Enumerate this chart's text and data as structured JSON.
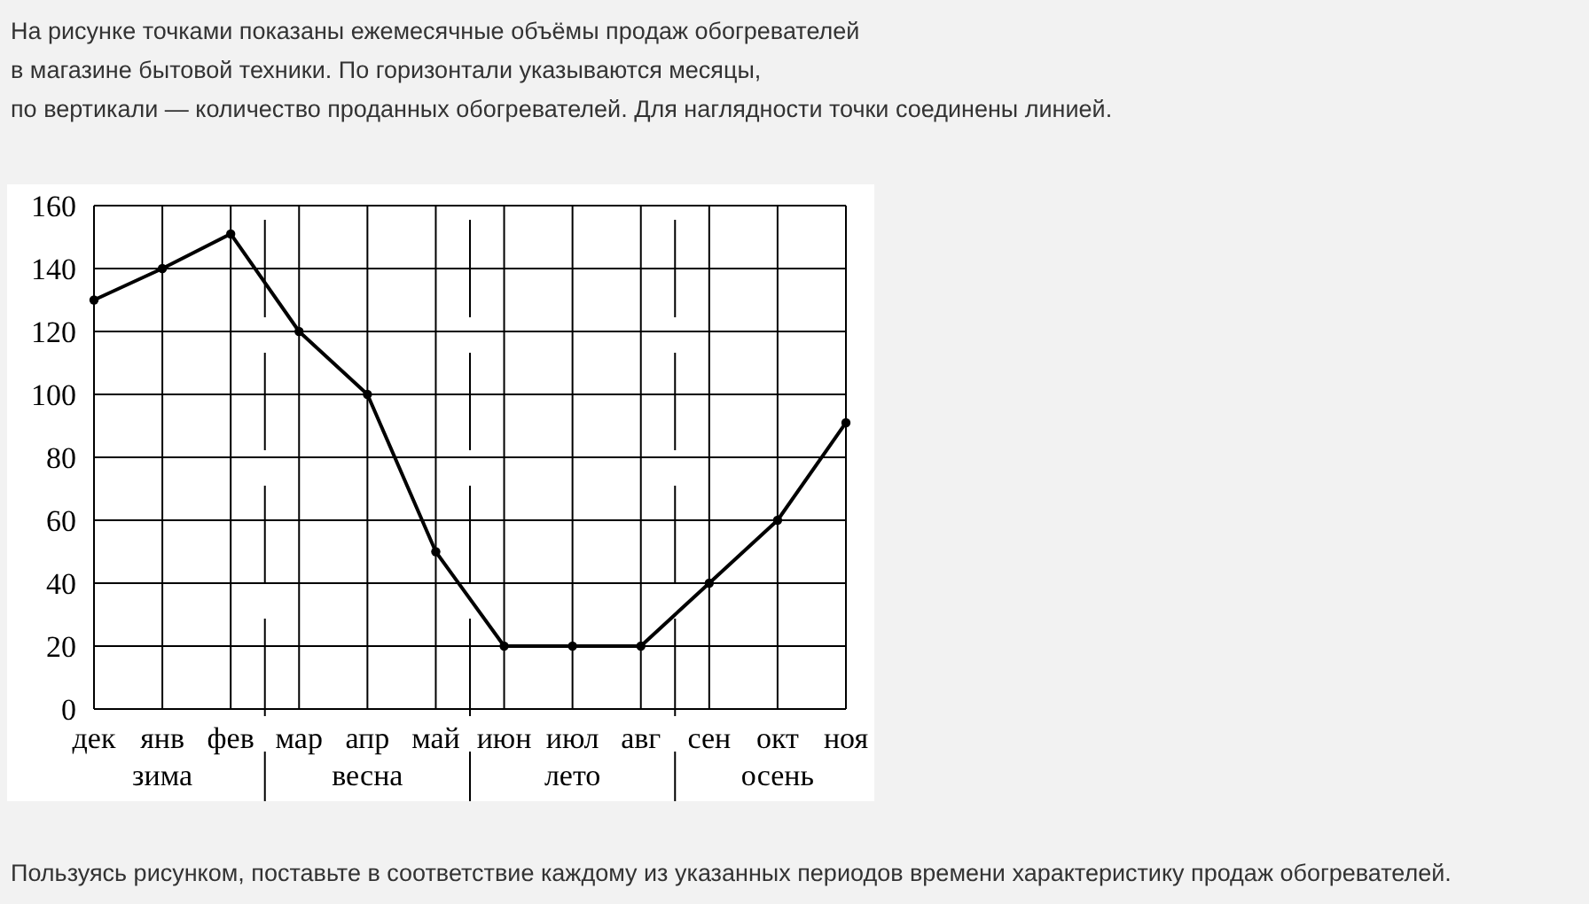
{
  "chart_data": {
    "type": "line",
    "title": "На рисунке точками показаны ежемесячные объёмы продаж обогревателей\nв магазине бытовой техники. По горизонтали указываются месяцы,\nпо вертикали — количество проданных обогревателей. Для наглядности точки соединены линией.",
    "categories": [
      "дек",
      "янв",
      "фев",
      "мар",
      "апр",
      "май",
      "июн",
      "июл",
      "авг",
      "сен",
      "окт",
      "ноя"
    ],
    "series": [
      {
        "color": "#000000",
        "values": [
          130,
          140,
          151,
          120,
          100,
          50,
          20,
          20,
          20,
          40,
          60,
          91
        ]
      }
    ],
    "ylim": [
      0,
      160
    ],
    "yticks": [
      0,
      20,
      40,
      60,
      80,
      100,
      120,
      140,
      160
    ],
    "grid": true,
    "marker": "circle",
    "line_style": "solid",
    "annotations": [
      "зима",
      "весна",
      "лето",
      "осень",
      "Пользуясь рисунком, поставьте в соответствие каждому из указанных периодов времени характеристику продаж обогревателей."
    ]
  }
}
